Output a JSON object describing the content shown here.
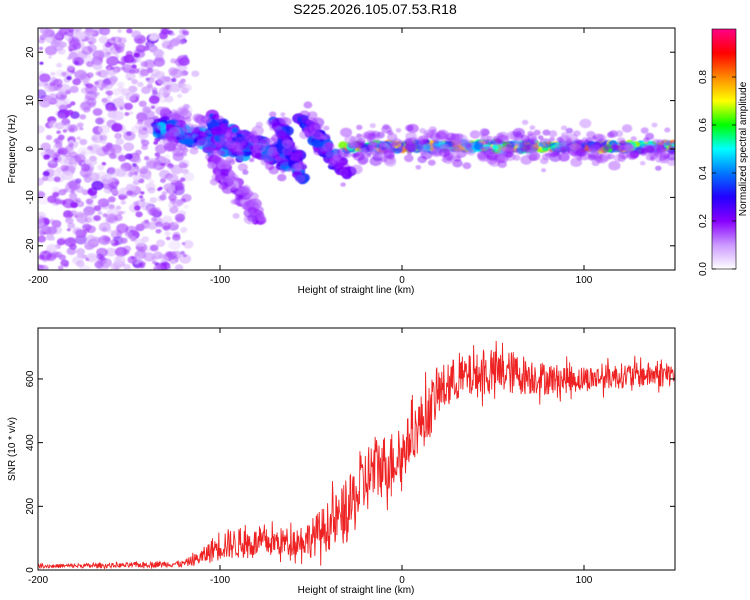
{
  "title": "S225.2026.105.07.53.R18",
  "colors": {
    "snr_line": "#ee2222",
    "spectrogram_palette": [
      "#ffffff",
      "#cc99ff",
      "#8800ff",
      "#2200ff",
      "#0077ff",
      "#00ffff",
      "#00ff00",
      "#ffff00",
      "#ff8800",
      "#ff0000",
      "#ff0088"
    ]
  },
  "chart_data": [
    {
      "type": "heatmap",
      "name": "spectrogram",
      "xlabel": "Height of straight line (km)",
      "ylabel": "Frequency (Hz)",
      "xlim": [
        -200,
        150
      ],
      "ylim": [
        -25,
        25
      ],
      "x_ticks": [
        -200,
        -100,
        0,
        100
      ],
      "y_ticks": [
        -20,
        -10,
        0,
        10,
        20
      ],
      "colorbar": {
        "label": "Normalized spectral amplitude",
        "range": [
          0,
          1
        ],
        "ticks": [
          0.0,
          0.2,
          0.4,
          0.6,
          0.8
        ]
      },
      "features": [
        {
          "region": "scattered noise",
          "x_range": [
            -200,
            -118
          ],
          "y_range": [
            -25,
            25
          ],
          "amplitude": 0.1
        },
        {
          "region": "main band",
          "x_start": -135,
          "y_start": 5,
          "x_end": -85,
          "y_end": -1,
          "amplitude": 0.35
        },
        {
          "region": "diagonal streak 1",
          "x_start": -105,
          "y_start": 5,
          "x_end": -58,
          "y_end": -3,
          "amplitude": 0.3
        },
        {
          "region": "diagonal streak 2",
          "x_start": -105,
          "y_start": -2,
          "x_end": -78,
          "y_end": -14,
          "amplitude": 0.15
        },
        {
          "region": "diagonal streak 3",
          "x_start": -72,
          "y_start": 8,
          "x_end": -55,
          "y_end": -5,
          "amplitude": 0.3
        },
        {
          "region": "diagonal streak 4",
          "x_start": -55,
          "y_start": 6,
          "x_end": -30,
          "y_end": -5,
          "amplitude": 0.3
        },
        {
          "region": "carrier line",
          "x_start": -30,
          "y_start": 0.5,
          "x_end": 150,
          "y_end": 0.5,
          "amplitude": 0.6
        }
      ]
    },
    {
      "type": "line",
      "name": "snr",
      "xlabel": "Height of straight line (km)",
      "ylabel": "SNR (10 * v/v)",
      "xlim": [
        -200,
        150
      ],
      "ylim": [
        0,
        760
      ],
      "x_ticks": [
        -200,
        -100,
        0,
        100
      ],
      "y_ticks": [
        0,
        200,
        400,
        600
      ],
      "series": [
        {
          "name": "SNR",
          "x": [
            -200,
            -150,
            -120,
            -110,
            -100,
            -80,
            -60,
            -50,
            -40,
            -30,
            -20,
            -15,
            -10,
            0,
            5,
            10,
            15,
            20,
            30,
            40,
            50,
            60,
            70,
            80,
            100,
            120,
            150
          ],
          "mean": [
            12,
            15,
            20,
            40,
            80,
            85,
            90,
            100,
            140,
            180,
            280,
            320,
            330,
            360,
            420,
            460,
            500,
            560,
            600,
            610,
            620,
            620,
            610,
            600,
            600,
            610,
            615
          ],
          "noise": [
            6,
            8,
            10,
            25,
            50,
            45,
            45,
            60,
            80,
            100,
            110,
            110,
            100,
            90,
            80,
            90,
            90,
            80,
            70,
            70,
            70,
            70,
            60,
            50,
            40,
            40,
            40
          ]
        }
      ]
    }
  ]
}
